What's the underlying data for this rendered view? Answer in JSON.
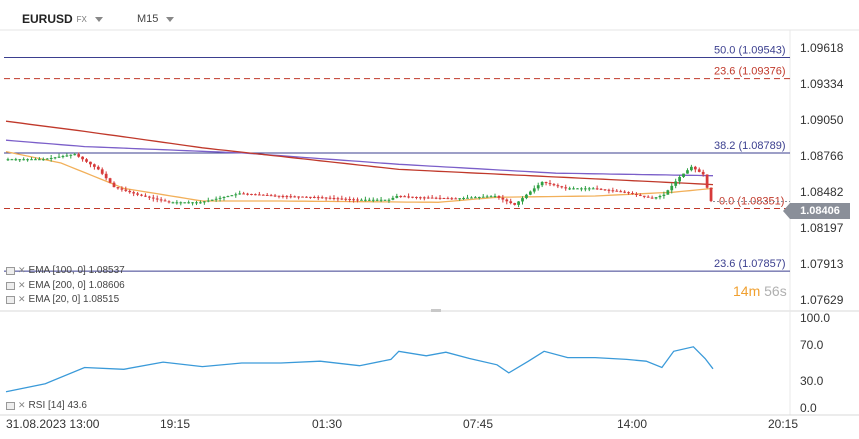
{
  "header": {
    "symbol": "EURUSD",
    "symbol_sub": "FX",
    "timeframe": "M15"
  },
  "price_tag": "1.08406",
  "timer": {
    "minutes": "14m",
    "seconds": "56s"
  },
  "legend": [
    {
      "text": "EMA [100, 0] 1.08537"
    },
    {
      "text": "EMA [200, 0] 1.08606"
    },
    {
      "text": "EMA [20, 0] 1.08515"
    }
  ],
  "rsi_legend": "RSI [14] 43.6",
  "colors": {
    "up": "#2ea043",
    "down": "#d63a3a",
    "ema20": "#f2b05a",
    "ema100": "#c0392b",
    "ema200": "#7b5fc9",
    "rsi": "#3a9ad9",
    "fib_solid": "#3b3f8f",
    "fib_dashed": "#c0392b"
  },
  "chart_data": {
    "type": "candlestick",
    "price_axis": {
      "range": [
        1.0755,
        1.0976
      ],
      "ticks": [
        1.09618,
        1.09334,
        1.0905,
        1.08766,
        1.08482,
        1.08197,
        1.07913,
        1.07629
      ],
      "tick_labels": [
        "1.09618",
        "1.09334",
        "1.09050",
        "1.08766",
        "1.08482",
        "1.08197",
        "1.07913",
        "1.07629"
      ]
    },
    "time_axis": {
      "labels": [
        "31.08.2023  13:00",
        "19:15",
        "01:30",
        "07:45",
        "14:00",
        "20:15"
      ]
    },
    "fib_levels": [
      {
        "label": "50.0 (1.09543)",
        "price": 1.09543,
        "style": "solid"
      },
      {
        "label": "23.6 (1.09376)",
        "price": 1.09376,
        "style": "dashed"
      },
      {
        "label": "38.2 (1.08789)",
        "price": 1.08789,
        "style": "solid"
      },
      {
        "label": "0.0 (1.08351)",
        "price": 1.08351,
        "style": "dashed"
      },
      {
        "label": "23.6 (1.07857)",
        "price": 1.07857,
        "style": "solid"
      }
    ],
    "ema": {
      "ema200": [
        [
          0,
          1.0889
        ],
        [
          20,
          1.0884
        ],
        [
          60,
          1.0879
        ],
        [
          100,
          1.087
        ],
        [
          140,
          1.0863
        ],
        [
          180,
          1.0861
        ]
      ],
      "ema100": [
        [
          0,
          1.0904
        ],
        [
          20,
          1.0896
        ],
        [
          50,
          1.0883
        ],
        [
          100,
          1.0866
        ],
        [
          140,
          1.086
        ],
        [
          180,
          1.0854
        ]
      ],
      "ema20": [
        [
          0,
          1.088
        ],
        [
          14,
          1.0871
        ],
        [
          30,
          1.0851
        ],
        [
          50,
          1.0841
        ],
        [
          70,
          1.0841
        ],
        [
          110,
          1.084
        ],
        [
          125,
          1.0844
        ],
        [
          150,
          1.0845
        ],
        [
          170,
          1.0848
        ],
        [
          180,
          1.0851
        ]
      ]
    },
    "price_path": [
      [
        0,
        1.0874
      ],
      [
        10,
        1.0874
      ],
      [
        18,
        1.0878
      ],
      [
        24,
        1.0866
      ],
      [
        28,
        1.0852
      ],
      [
        34,
        1.0846
      ],
      [
        42,
        1.084
      ],
      [
        50,
        1.084
      ],
      [
        60,
        1.0847
      ],
      [
        70,
        1.0845
      ],
      [
        80,
        1.0844
      ],
      [
        90,
        1.0842
      ],
      [
        98,
        1.0842
      ],
      [
        100,
        1.0845
      ],
      [
        105,
        1.0844
      ],
      [
        115,
        1.0843
      ],
      [
        125,
        1.0845
      ],
      [
        130,
        1.0838
      ],
      [
        133,
        1.0846
      ],
      [
        137,
        1.0856
      ],
      [
        143,
        1.0851
      ],
      [
        150,
        1.0851
      ],
      [
        158,
        1.0848
      ],
      [
        165,
        1.0843
      ],
      [
        168,
        1.0846
      ],
      [
        172,
        1.086
      ],
      [
        175,
        1.0868
      ],
      [
        178,
        1.0862
      ],
      [
        180,
        1.0841
      ]
    ],
    "rsi": {
      "range": [
        0,
        100
      ],
      "ticks": [
        0,
        30,
        70,
        100
      ],
      "tick_labels": [
        "0.0",
        "30.0",
        "70.0",
        "100.0"
      ],
      "values": [
        [
          0,
          18
        ],
        [
          10,
          27
        ],
        [
          20,
          45
        ],
        [
          30,
          43
        ],
        [
          40,
          51
        ],
        [
          50,
          46
        ],
        [
          60,
          50
        ],
        [
          70,
          50
        ],
        [
          80,
          52
        ],
        [
          90,
          47
        ],
        [
          98,
          54
        ],
        [
          100,
          63
        ],
        [
          107,
          58
        ],
        [
          112,
          62
        ],
        [
          118,
          55
        ],
        [
          125,
          48
        ],
        [
          128,
          39
        ],
        [
          133,
          52
        ],
        [
          137,
          63
        ],
        [
          143,
          56
        ],
        [
          150,
          56
        ],
        [
          158,
          54
        ],
        [
          163,
          52
        ],
        [
          167,
          45
        ],
        [
          170,
          63
        ],
        [
          175,
          68
        ],
        [
          178,
          55
        ],
        [
          180,
          43.6
        ]
      ]
    }
  }
}
